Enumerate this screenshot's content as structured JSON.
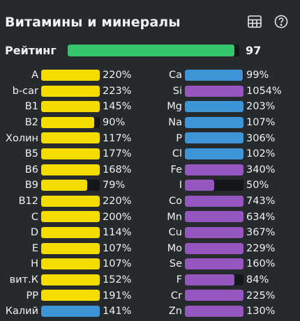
{
  "header": {
    "title": "Витамины и минералы",
    "icons": [
      "table-icon",
      "help-icon"
    ]
  },
  "rating": {
    "label": "Рейтинг",
    "value": "97",
    "percent": 97,
    "color": "#35c56a"
  },
  "colors": {
    "yellow": "#f5dc00",
    "blue": "#3d95d8",
    "purple": "#9656c0",
    "track": "#141618"
  },
  "vitamins": [
    {
      "name": "A",
      "value": "220%",
      "pct": 220,
      "color": "yellow"
    },
    {
      "name": "b-car",
      "value": "223%",
      "pct": 223,
      "color": "yellow"
    },
    {
      "name": "B1",
      "value": "145%",
      "pct": 145,
      "color": "yellow"
    },
    {
      "name": "B2",
      "value": "90%",
      "pct": 90,
      "color": "yellow"
    },
    {
      "name": "Холин",
      "value": "117%",
      "pct": 117,
      "color": "yellow"
    },
    {
      "name": "B5",
      "value": "177%",
      "pct": 177,
      "color": "yellow"
    },
    {
      "name": "B6",
      "value": "168%",
      "pct": 168,
      "color": "yellow"
    },
    {
      "name": "B9",
      "value": "79%",
      "pct": 79,
      "color": "yellow"
    },
    {
      "name": "B12",
      "value": "220%",
      "pct": 220,
      "color": "yellow"
    },
    {
      "name": "C",
      "value": "200%",
      "pct": 200,
      "color": "yellow"
    },
    {
      "name": "D",
      "value": "114%",
      "pct": 114,
      "color": "yellow"
    },
    {
      "name": "E",
      "value": "107%",
      "pct": 107,
      "color": "yellow"
    },
    {
      "name": "H",
      "value": "107%",
      "pct": 107,
      "color": "yellow"
    },
    {
      "name": "вит.К",
      "value": "152%",
      "pct": 152,
      "color": "yellow"
    },
    {
      "name": "PP",
      "value": "191%",
      "pct": 191,
      "color": "yellow"
    },
    {
      "name": "Калий",
      "value": "141%",
      "pct": 141,
      "color": "blue"
    }
  ],
  "minerals": [
    {
      "name": "Ca",
      "value": "99%",
      "pct": 99,
      "color": "blue"
    },
    {
      "name": "Si",
      "value": "1054%",
      "pct": 1054,
      "color": "purple"
    },
    {
      "name": "Mg",
      "value": "203%",
      "pct": 203,
      "color": "blue"
    },
    {
      "name": "Na",
      "value": "107%",
      "pct": 107,
      "color": "blue"
    },
    {
      "name": "P",
      "value": "306%",
      "pct": 306,
      "color": "blue"
    },
    {
      "name": "Cl",
      "value": "102%",
      "pct": 102,
      "color": "blue"
    },
    {
      "name": "Fe",
      "value": "340%",
      "pct": 340,
      "color": "purple"
    },
    {
      "name": "I",
      "value": "50%",
      "pct": 50,
      "color": "purple"
    },
    {
      "name": "Co",
      "value": "743%",
      "pct": 743,
      "color": "purple"
    },
    {
      "name": "Mn",
      "value": "634%",
      "pct": 634,
      "color": "purple"
    },
    {
      "name": "Cu",
      "value": "367%",
      "pct": 367,
      "color": "purple"
    },
    {
      "name": "Mo",
      "value": "229%",
      "pct": 229,
      "color": "purple"
    },
    {
      "name": "Se",
      "value": "160%",
      "pct": 160,
      "color": "purple"
    },
    {
      "name": "F",
      "value": "84%",
      "pct": 84,
      "color": "purple"
    },
    {
      "name": "Cr",
      "value": "225%",
      "pct": 225,
      "color": "purple"
    },
    {
      "name": "Zn",
      "value": "130%",
      "pct": 130,
      "color": "purple"
    }
  ]
}
